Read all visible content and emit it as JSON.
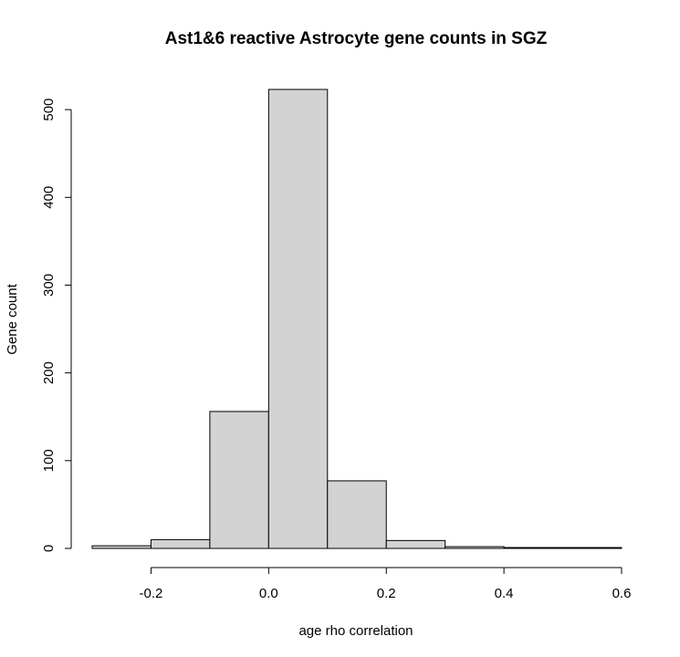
{
  "chart_data": {
    "type": "bar",
    "title": "Ast1&6 reactive Astrocyte gene counts in SGZ",
    "xlabel": "age rho correlation",
    "ylabel": "Gene count",
    "bins": [
      {
        "x0": -0.3,
        "x1": -0.2,
        "count": 3
      },
      {
        "x0": -0.2,
        "x1": -0.1,
        "count": 10
      },
      {
        "x0": -0.1,
        "x1": 0.0,
        "count": 156
      },
      {
        "x0": 0.0,
        "x1": 0.1,
        "count": 523
      },
      {
        "x0": 0.1,
        "x1": 0.2,
        "count": 77
      },
      {
        "x0": 0.2,
        "x1": 0.3,
        "count": 9
      },
      {
        "x0": 0.3,
        "x1": 0.4,
        "count": 2
      },
      {
        "x0": 0.4,
        "x1": 0.5,
        "count": 1
      },
      {
        "x0": 0.5,
        "x1": 0.6,
        "count": 1
      }
    ],
    "xlim": [
      -0.3,
      0.6
    ],
    "ylim": [
      0,
      523
    ],
    "xticks": [
      -0.2,
      0.0,
      0.2,
      0.4,
      0.6
    ],
    "xtick_labels": [
      "-0.2",
      "0.0",
      "0.2",
      "0.4",
      "0.6"
    ],
    "yticks": [
      0,
      100,
      200,
      300,
      400,
      500
    ],
    "ytick_labels": [
      "0",
      "100",
      "200",
      "300",
      "400",
      "500"
    ],
    "bar_color": "#d3d3d3",
    "edge_color": "#000000",
    "grid": false,
    "legend": "none"
  }
}
